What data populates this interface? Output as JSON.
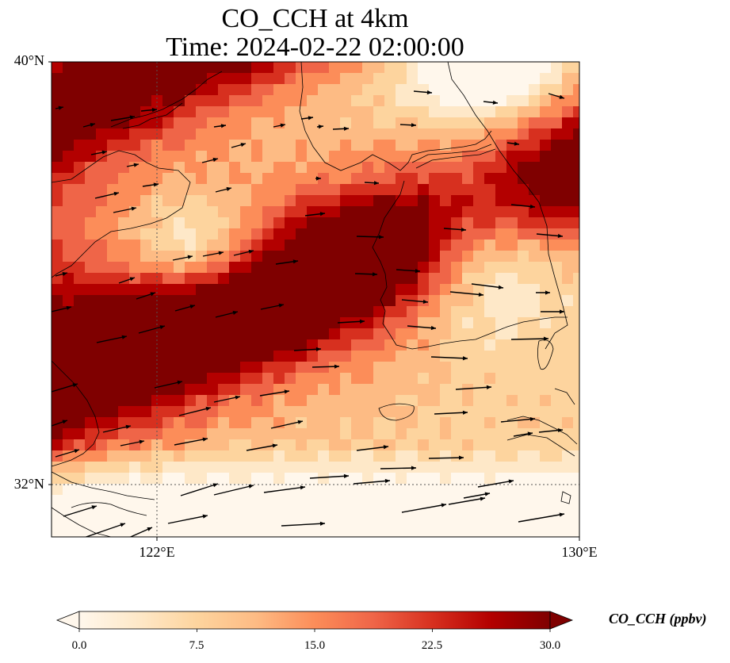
{
  "title": {
    "line1": "CO_CCH at 4km",
    "line2": "Time: 2024-02-22 02:00:00"
  },
  "axes": {
    "lat_labels": [
      "40°N",
      "32°N"
    ],
    "lon_labels": [
      "122°E",
      "130°E"
    ]
  },
  "colorbar": {
    "label": "CO_CCH (ppbv)",
    "ticks": [
      "0.0",
      "7.5",
      "15.0",
      "22.5",
      "30.0"
    ],
    "min": 0,
    "max": 30,
    "colormap": "OrRd",
    "extend": "both"
  },
  "map": {
    "lat_range": [
      31,
      40
    ],
    "lon_range": [
      120,
      130
    ],
    "gridlines": "dotted at 122°E and 32°N",
    "colors": [
      "#fff7ec",
      "#fee8c8",
      "#fdd49e",
      "#fdbb84",
      "#fc8d59",
      "#ef6548",
      "#d7301f",
      "#b30000",
      "#7f0000"
    ]
  }
}
